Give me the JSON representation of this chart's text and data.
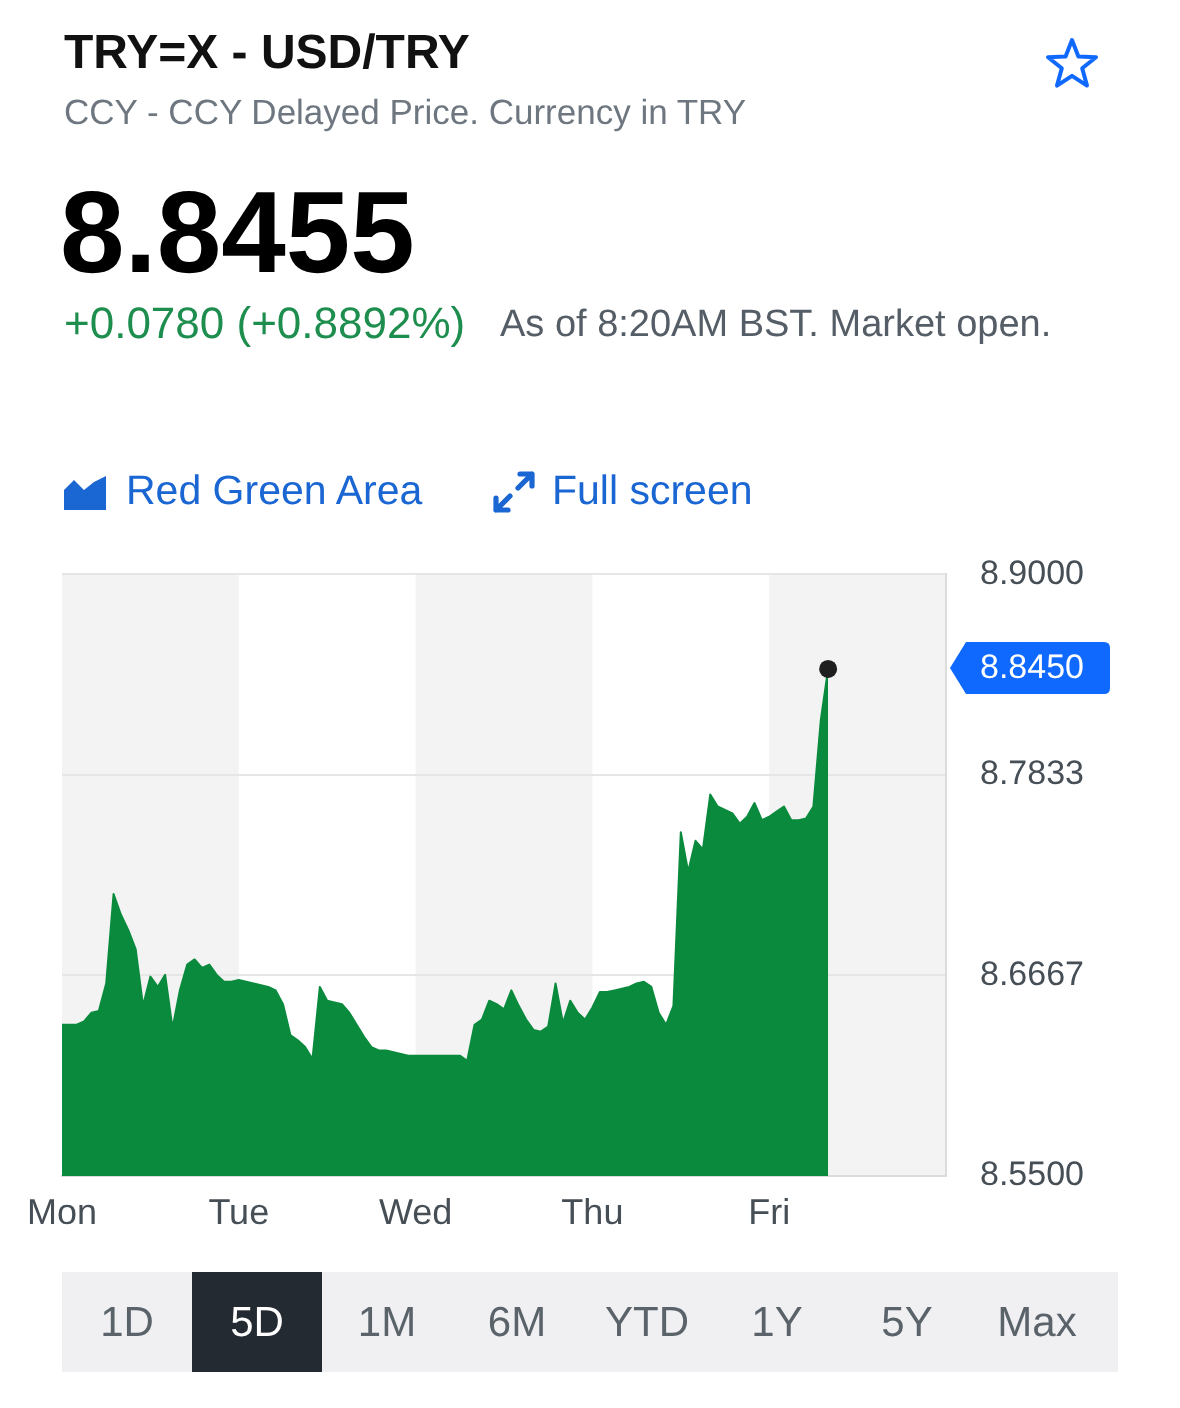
{
  "chart_data": {
    "type": "area",
    "title": "TRY=X - USD/TRY",
    "subtitle": "CCY - CCY Delayed Price. Currency in TRY",
    "annotations": [
      "8.8455",
      "+0.0780 (+0.8892%)",
      "As of 8:20AM BST. Market open.",
      "Red Green Area",
      "Full screen",
      "1D",
      "5D",
      "1M",
      "6M",
      "YTD",
      "1Y",
      "5Y",
      "Max",
      "8.8450"
    ],
    "categories": [
      "Mon",
      null,
      null,
      null,
      null,
      null,
      null,
      null,
      null,
      null,
      null,
      null,
      null,
      null,
      null,
      null,
      null,
      null,
      null,
      null,
      null,
      null,
      null,
      null,
      "Tue",
      null,
      null,
      null,
      null,
      null,
      null,
      null,
      null,
      null,
      null,
      null,
      null,
      null,
      null,
      null,
      null,
      null,
      null,
      null,
      null,
      null,
      null,
      null,
      "Wed",
      null,
      null,
      null,
      null,
      null,
      null,
      null,
      null,
      null,
      null,
      null,
      null,
      null,
      null,
      null,
      null,
      null,
      null,
      null,
      null,
      null,
      null,
      null,
      "Thu",
      null,
      null,
      null,
      null,
      null,
      null,
      null,
      null,
      null,
      null,
      null,
      null,
      null,
      null,
      null,
      null,
      null,
      null,
      null,
      null,
      null,
      null,
      null,
      "Fri",
      null,
      null,
      null,
      null,
      null,
      null,
      null,
      null,
      null,
      null,
      null,
      null,
      null,
      null,
      null,
      null,
      null,
      null,
      null,
      null,
      null,
      null,
      null,
      null
    ],
    "ylim": [
      8.55,
      8.9
    ],
    "yticks": [
      {
        "value": 8.9,
        "label": "8.9000"
      },
      8.7833,
      8.6667,
      {
        "value": 8.55,
        "label": "8.5500"
      }
    ],
    "grid": "y",
    "legend": false,
    "marker": "none",
    "bands": [
      {
        "axis": "x",
        "from": "Tue",
        "to": "Wed",
        "color": "#ffffff"
      },
      {
        "axis": "x",
        "from": "Thu",
        "to": "Fri",
        "color": "#ffffff"
      }
    ],
    "series": [
      {
        "color": "#0a8a3d",
        "values": [
          8.638,
          8.638,
          8.638,
          8.64,
          8.645,
          8.646,
          8.662,
          8.714,
          8.702,
          8.693,
          8.682,
          8.649,
          8.666,
          8.66,
          8.667,
          8.636,
          8.658,
          8.673,
          8.676,
          8.671,
          8.673,
          8.667,
          8.663,
          8.663,
          8.664,
          8.663,
          8.662,
          8.661,
          8.66,
          8.658,
          8.65,
          8.632,
          8.629,
          8.625,
          8.618,
          8.66,
          8.652,
          8.651,
          8.65,
          8.645,
          8.638,
          8.631,
          8.625,
          8.623,
          8.623,
          8.622,
          8.621,
          8.62,
          8.62,
          8.62,
          8.62,
          8.62,
          8.62,
          8.62,
          8.62,
          8.617,
          8.638,
          8.641,
          8.652,
          8.65,
          8.647,
          8.658,
          8.649,
          8.641,
          8.635,
          8.634,
          8.637,
          8.662,
          8.639,
          8.652,
          8.645,
          8.641,
          8.648,
          8.657,
          8.657,
          8.658,
          8.659,
          8.66,
          8.662,
          8.663,
          8.66,
          8.645,
          8.638,
          8.649,
          8.75,
          8.727,
          8.745,
          8.74,
          8.772,
          8.765,
          8.763,
          8.761,
          8.755,
          8.759,
          8.767,
          8.757,
          8.759,
          8.762,
          8.765,
          8.757,
          8.757,
          8.758,
          8.765,
          8.815,
          8.845,
          null,
          null,
          null,
          null,
          null,
          null,
          null,
          null,
          null,
          null,
          null,
          null,
          null,
          null,
          null,
          null
        ]
      },
      {
        "type": "scatter",
        "color": "#1f1f1f",
        "marker": "circle",
        "values": [
          null,
          null,
          null,
          null,
          null,
          null,
          null,
          null,
          null,
          null,
          null,
          null,
          null,
          null,
          null,
          null,
          null,
          null,
          null,
          null,
          null,
          null,
          null,
          null,
          null,
          null,
          null,
          null,
          null,
          null,
          null,
          null,
          null,
          null,
          null,
          null,
          null,
          null,
          null,
          null,
          null,
          null,
          null,
          null,
          null,
          null,
          null,
          null,
          null,
          null,
          null,
          null,
          null,
          null,
          null,
          null,
          null,
          null,
          null,
          null,
          null,
          null,
          null,
          null,
          null,
          null,
          null,
          null,
          null,
          null,
          null,
          null,
          null,
          null,
          null,
          null,
          null,
          null,
          null,
          null,
          null,
          null,
          null,
          null,
          null,
          null,
          null,
          null,
          null,
          null,
          null,
          null,
          null,
          null,
          null,
          null,
          null,
          null,
          null,
          null,
          null,
          null,
          null,
          null,
          8.845,
          null,
          null,
          null,
          null,
          null,
          null,
          null,
          null,
          null,
          null,
          null,
          null,
          null,
          null,
          null,
          null
        ]
      }
    ]
  }
}
